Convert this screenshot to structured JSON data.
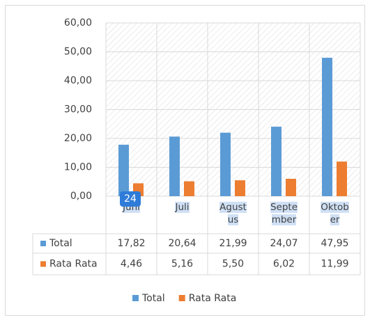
{
  "chart_data": {
    "type": "bar",
    "categories": [
      "Juni",
      "Juli",
      "Agustus",
      "September",
      "Oktober"
    ],
    "series": [
      {
        "name": "Total",
        "color": "#5b9bd5",
        "values": [
          17.82,
          20.64,
          21.99,
          24.07,
          47.95
        ],
        "value_labels": [
          "17,82",
          "20,64",
          "21,99",
          "24,07",
          "47,95"
        ]
      },
      {
        "name": "Rata Rata",
        "color": "#ed7d31",
        "values": [
          4.46,
          5.16,
          5.5,
          6.02,
          11.99
        ],
        "value_labels": [
          "4,46",
          "5,16",
          "5,50",
          "6,02",
          "11,99"
        ]
      }
    ],
    "ylim": [
      0,
      60
    ],
    "yticks": [
      {
        "value": 0,
        "label": "0,00"
      },
      {
        "value": 10,
        "label": "10,00"
      },
      {
        "value": 20,
        "label": "20,00"
      },
      {
        "value": 30,
        "label": "30,00"
      },
      {
        "value": 40,
        "label": "40,00"
      },
      {
        "value": 50,
        "label": "50,00"
      },
      {
        "value": 60,
        "label": "60,00"
      }
    ],
    "grid": true,
    "legend": "bottom",
    "badge": "24"
  }
}
